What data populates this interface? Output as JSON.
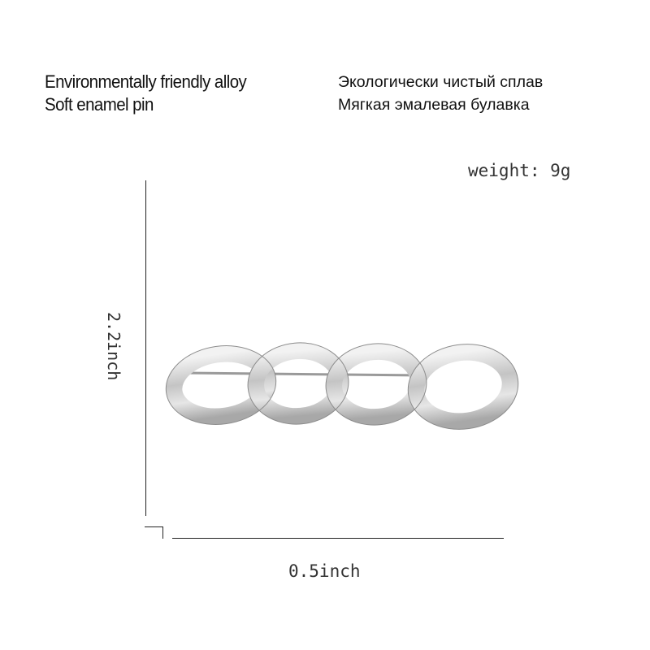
{
  "text": {
    "line1_en": "Environmentally friendly alloy",
    "line2_en": "Soft enamel pin",
    "line1_ru": "Экологически чистый сплав",
    "line2_ru": "Мягкая эмалевая булавка",
    "weight": "weight: 9g",
    "height_dim": "2.2inch",
    "width_dim": "0.5inch"
  },
  "product": {
    "type": "chain link brooch",
    "links": 4,
    "color": "#c8c8c8"
  }
}
